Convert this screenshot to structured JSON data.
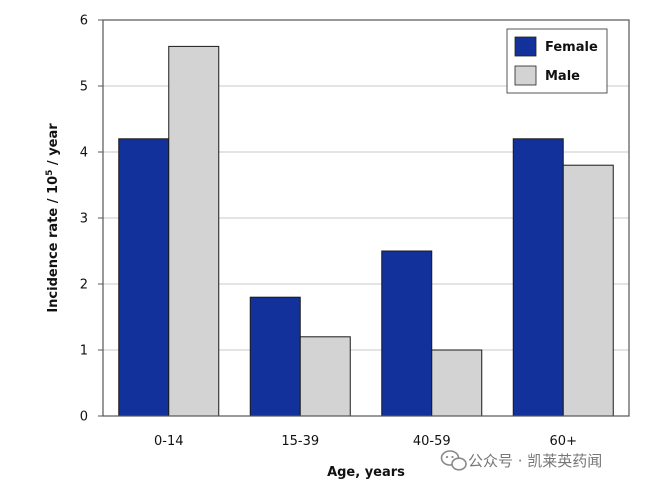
{
  "chart_data": {
    "type": "bar",
    "categories": [
      "0-14",
      "15-39",
      "40-59",
      "60+"
    ],
    "series": [
      {
        "name": "Female",
        "color": "#13319a",
        "values": [
          4.2,
          1.8,
          2.5,
          4.2
        ]
      },
      {
        "name": "Male",
        "color": "#d3d3d3",
        "values": [
          5.6,
          1.2,
          1.0,
          3.8
        ]
      }
    ],
    "xlabel": "Age, years",
    "ylabel_main": "Incidence rate / 10",
    "ylabel_sup": "5",
    "ylabel_tail": " / year",
    "ylim": [
      0,
      6
    ],
    "yticks": [
      0,
      1,
      2,
      3,
      4,
      5,
      6
    ],
    "grid": true,
    "legend_position": "top-right"
  },
  "watermark": {
    "icon": "wechat-icon",
    "text": "公众号 · 凯莱英药闻"
  }
}
